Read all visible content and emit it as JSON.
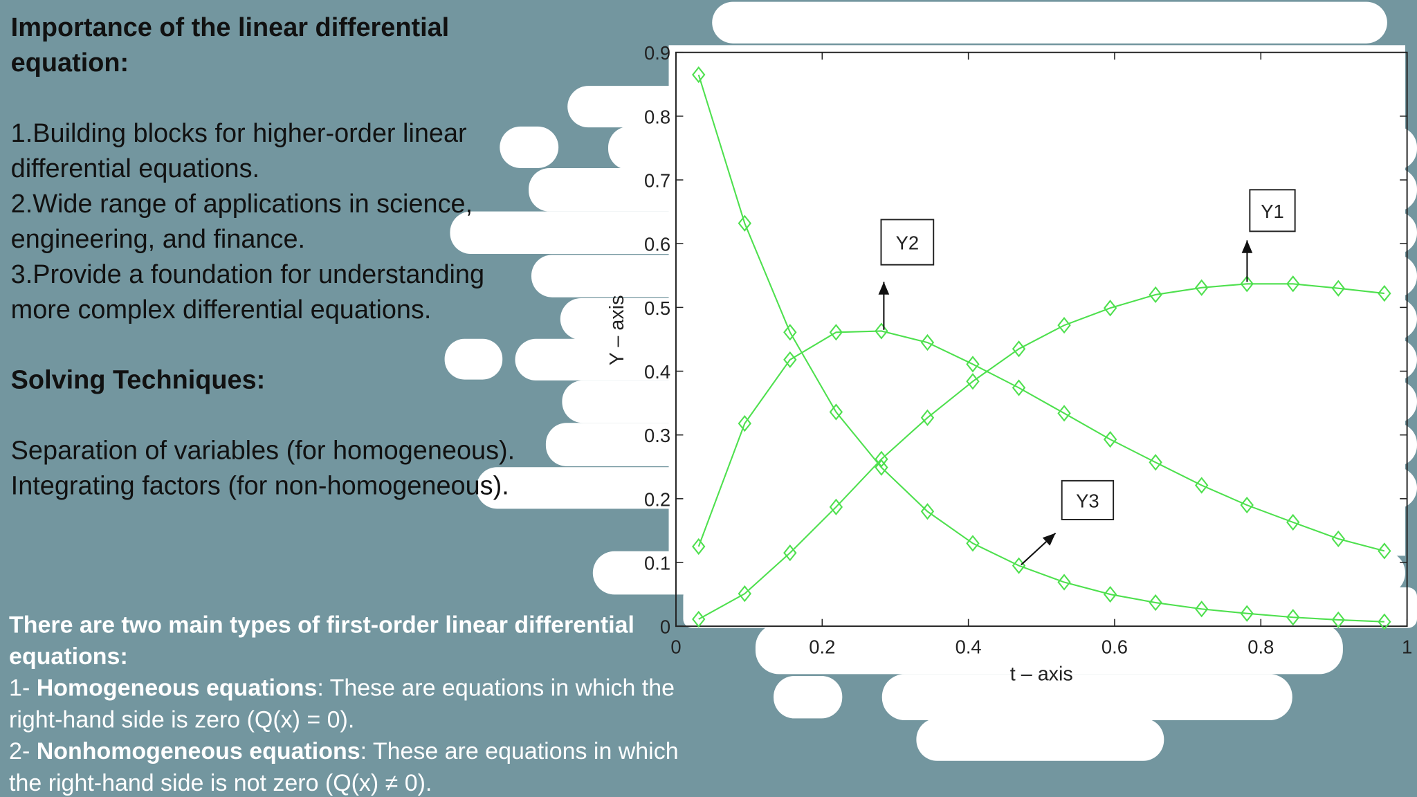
{
  "text": {
    "heading1": "Importance of the linear differential equation:",
    "points": [
      "1.Building blocks for higher-order linear differential equations.",
      "2.Wide range of applications in science, engineering, and finance.",
      "3.Provide a foundation for understanding more complex differential equations."
    ],
    "heading2": "Solving Techniques:",
    "techniques": [
      "Separation of variables (for homogeneous).",
      "Integrating factors (for non-homogeneous)."
    ],
    "types_intro": "There are two main types of first-order linear differential equations:",
    "types": [
      {
        "prefix": "1- ",
        "term": "Homogeneous equations",
        "desc": ": These are equations in which the right-hand side is zero (Q(x) = 0)."
      },
      {
        "prefix": "2- ",
        "term": "Nonhomogeneous equations",
        "desc": ": These are equations in which the right-hand side is not zero (Q(x) ≠ 0)."
      }
    ]
  },
  "chart_data": {
    "type": "line",
    "x_label": "t – axis",
    "y_label": "Y – axis",
    "x": [
      0.031,
      0.094,
      0.156,
      0.219,
      0.281,
      0.344,
      0.406,
      0.469,
      0.531,
      0.594,
      0.656,
      0.719,
      0.781,
      0.844,
      0.906,
      0.969
    ],
    "series": [
      {
        "name": "Y1",
        "color": "#4ee04e",
        "values": [
          0.011,
          0.051,
          0.115,
          0.187,
          0.262,
          0.327,
          0.384,
          0.435,
          0.472,
          0.499,
          0.52,
          0.531,
          0.537,
          0.537,
          0.53,
          0.522
        ]
      },
      {
        "name": "Y2",
        "color": "#4ee04e",
        "values": [
          0.125,
          0.318,
          0.418,
          0.461,
          0.463,
          0.445,
          0.411,
          0.374,
          0.334,
          0.293,
          0.257,
          0.221,
          0.19,
          0.163,
          0.137,
          0.118
        ]
      },
      {
        "name": "Y3",
        "color": "#4ee04e",
        "values": [
          0.865,
          0.632,
          0.461,
          0.336,
          0.249,
          0.18,
          0.13,
          0.095,
          0.069,
          0.05,
          0.037,
          0.027,
          0.02,
          0.014,
          0.01,
          0.007
        ]
      }
    ],
    "xlim": [
      0,
      1
    ],
    "ylim": [
      0,
      0.9
    ],
    "xticks": [
      0,
      0.2,
      0.4,
      0.6,
      0.8,
      1
    ],
    "yticks": [
      0,
      0.1,
      0.2,
      0.3,
      0.4,
      0.5,
      0.6,
      0.7,
      0.8,
      0.9
    ],
    "marker": "diamond"
  }
}
